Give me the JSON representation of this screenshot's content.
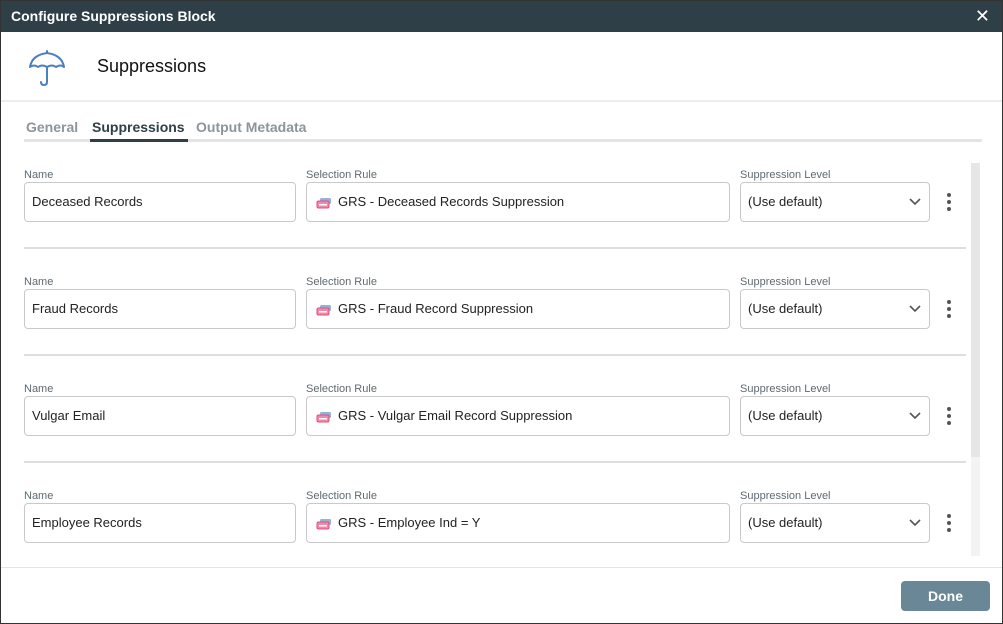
{
  "dialog": {
    "title": "Configure Suppressions Block",
    "close": "✕"
  },
  "header": {
    "title": "Suppressions",
    "icon": "umbrella-icon",
    "icon_color": "#4a7fc1"
  },
  "tabs": [
    {
      "label": "General"
    },
    {
      "label": "Suppressions",
      "active": true
    },
    {
      "label": "Output Metadata"
    }
  ],
  "labels": {
    "name": "Name",
    "rule": "Selection Rule",
    "level": "Suppression Level"
  },
  "rows": [
    {
      "name": "Deceased Records",
      "rule": "GRS - Deceased Records Suppression",
      "level": "(Use default)"
    },
    {
      "name": "Fraud Records",
      "rule": "GRS - Fraud Record Suppression",
      "level": "(Use default)"
    },
    {
      "name": "Vulgar Email",
      "rule": "GRS - Vulgar Email Record Suppression",
      "level": "(Use default)"
    },
    {
      "name": "Employee Records",
      "rule": "GRS - Employee Ind = Y",
      "level": "(Use default)"
    }
  ],
  "footer": {
    "done": "Done"
  }
}
